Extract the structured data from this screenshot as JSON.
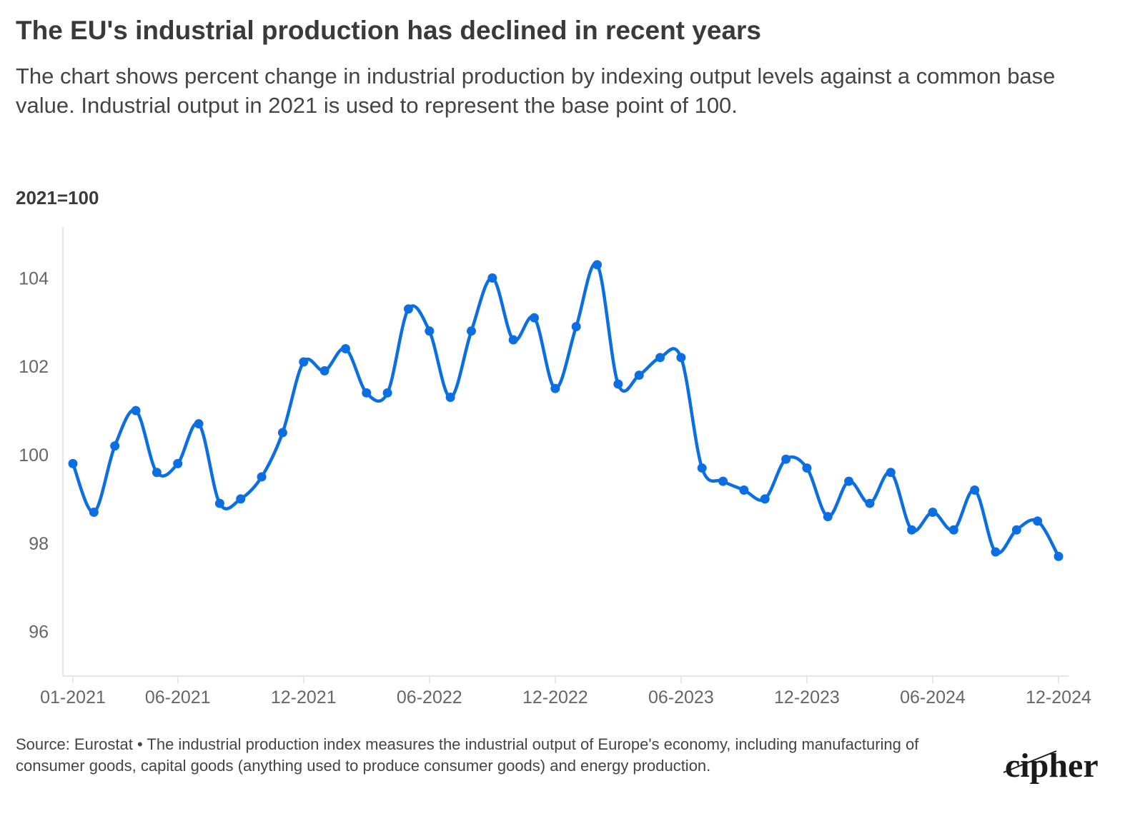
{
  "title": "The EU's industrial production has declined in recent years",
  "subtitle": "The chart shows percent change in industrial production by indexing output levels against a common base value. Industrial output in 2021 is used to represent the base point of 100.",
  "unit_label": "2021=100",
  "footer": "Source: Eurostat • The industrial production index measures the industrial output of Europe's economy, including manufacturing of consumer goods, capital goods (anything used to produce consumer goods) and energy production.",
  "logo_text": "cipher",
  "colors": {
    "line": "#0b6fe3",
    "axis": "#e6e6e6",
    "tick_text": "#666666"
  },
  "chart_data": {
    "type": "line",
    "title": "The EU's industrial production has declined in recent years",
    "ylabel": "2021=100",
    "xlabel": "",
    "ylim": [
      95,
      105.1
    ],
    "yticks": [
      96,
      98,
      100,
      102,
      104
    ],
    "xtick_labels": [
      "01-2021",
      "06-2021",
      "12-2021",
      "06-2022",
      "12-2022",
      "06-2023",
      "12-2023",
      "06-2024",
      "12-2024"
    ],
    "xtick_indices": [
      0,
      5,
      11,
      17,
      23,
      29,
      35,
      41,
      47
    ],
    "grid": false,
    "x": [
      "01-2021",
      "02-2021",
      "03-2021",
      "04-2021",
      "05-2021",
      "06-2021",
      "07-2021",
      "08-2021",
      "09-2021",
      "10-2021",
      "11-2021",
      "12-2021",
      "01-2022",
      "02-2022",
      "03-2022",
      "04-2022",
      "05-2022",
      "06-2022",
      "07-2022",
      "08-2022",
      "09-2022",
      "10-2022",
      "11-2022",
      "12-2022",
      "01-2023",
      "02-2023",
      "03-2023",
      "04-2023",
      "05-2023",
      "06-2023",
      "07-2023",
      "08-2023",
      "09-2023",
      "10-2023",
      "11-2023",
      "12-2023",
      "01-2024",
      "02-2024",
      "03-2024",
      "04-2024",
      "05-2024",
      "06-2024",
      "07-2024",
      "08-2024",
      "09-2024",
      "10-2024",
      "11-2024",
      "12-2024"
    ],
    "series": [
      {
        "values": [
          99.8,
          98.7,
          100.2,
          101.0,
          99.6,
          99.8,
          100.7,
          98.9,
          99.0,
          99.5,
          100.5,
          102.1,
          101.9,
          102.4,
          101.4,
          101.4,
          103.3,
          102.8,
          101.3,
          102.8,
          104.0,
          102.6,
          103.1,
          101.5,
          102.9,
          104.3,
          101.6,
          101.8,
          102.2,
          102.2,
          99.7,
          99.4,
          99.2,
          99.0,
          99.9,
          99.7,
          98.6,
          99.4,
          98.9,
          99.6,
          98.3,
          98.7,
          98.3,
          99.2,
          97.8,
          98.3,
          98.5,
          97.7
        ]
      }
    ]
  }
}
